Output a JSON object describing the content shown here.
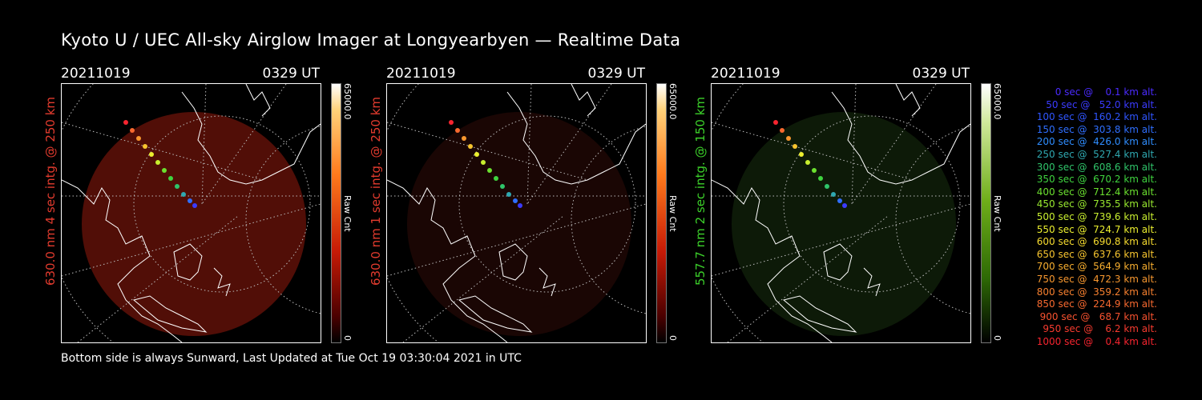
{
  "title": "Kyoto U / UEC All-sky Airglow Imager at Longyearbyen — Realtime Data",
  "footer": "Bottom side is always Sunward, Last Updated at Tue Oct 19 03:30:04 2021 in UTC",
  "panels": [
    {
      "date": "20211019",
      "time": "0329 UT",
      "ylabel": "630.0 nm 4 sec intg. @ 250 km",
      "ylabel_color": "#e33b2e",
      "cbar_top": "65000.0",
      "cbar_bottom": "0",
      "cbar_unit": "Raw Cnt",
      "cbar_color": "red"
    },
    {
      "date": "20211019",
      "time": "0329 UT",
      "ylabel": "630.0 nm 1 sec intg. @ 250 km",
      "ylabel_color": "#e33b2e",
      "cbar_top": "65000.0",
      "cbar_bottom": "0",
      "cbar_unit": "Raw Cnt",
      "cbar_color": "red"
    },
    {
      "date": "20211019",
      "time": "0329 UT",
      "ylabel": "557.7 nm 2 sec intg. @ 150 km",
      "ylabel_color": "#3cd12a",
      "cbar_top": "65000.0",
      "cbar_bottom": "0",
      "cbar_unit": "Raw Cnt",
      "cbar_color": "green"
    }
  ],
  "legend": [
    {
      "text": "0 sec @    0.1 km alt.",
      "color": "#4b2bff"
    },
    {
      "text": "50 sec @   52.0 km alt.",
      "color": "#3b3bff"
    },
    {
      "text": "100 sec @  160.2 km alt.",
      "color": "#2f55ff"
    },
    {
      "text": "150 sec @  303.8 km alt.",
      "color": "#2f6fff"
    },
    {
      "text": "200 sec @  426.0 km alt.",
      "color": "#2f8dff"
    },
    {
      "text": "250 sec @  527.4 km alt.",
      "color": "#2fa8b0"
    },
    {
      "text": "300 sec @  608.6 km alt.",
      "color": "#2fc46a"
    },
    {
      "text": "350 sec @  670.2 km alt.",
      "color": "#3fd43f"
    },
    {
      "text": "400 sec @  712.4 km alt.",
      "color": "#6be02f"
    },
    {
      "text": "450 sec @  735.5 km alt.",
      "color": "#98e82f"
    },
    {
      "text": "500 sec @  739.6 km alt.",
      "color": "#c8ee2f"
    },
    {
      "text": "550 sec @  724.7 km alt.",
      "color": "#ecef2f"
    },
    {
      "text": "600 sec @  690.8 km alt.",
      "color": "#f7dc2f"
    },
    {
      "text": "650 sec @  637.6 km alt.",
      "color": "#f7c52f"
    },
    {
      "text": "700 sec @  564.9 km alt.",
      "color": "#f7ae2f"
    },
    {
      "text": "750 sec @  472.3 km alt.",
      "color": "#f7972f"
    },
    {
      "text": "800 sec @  359.2 km alt.",
      "color": "#f7802f"
    },
    {
      "text": "850 sec @  224.9 km alt.",
      "color": "#f7692f"
    },
    {
      "text": "900 sec @   68.7 km alt.",
      "color": "#f7522f"
    },
    {
      "text": "950 sec @    6.2 km alt.",
      "color": "#f73b2f"
    },
    {
      "text": "1000 sec @    0.4 km alt.",
      "color": "#f7242f"
    }
  ]
}
